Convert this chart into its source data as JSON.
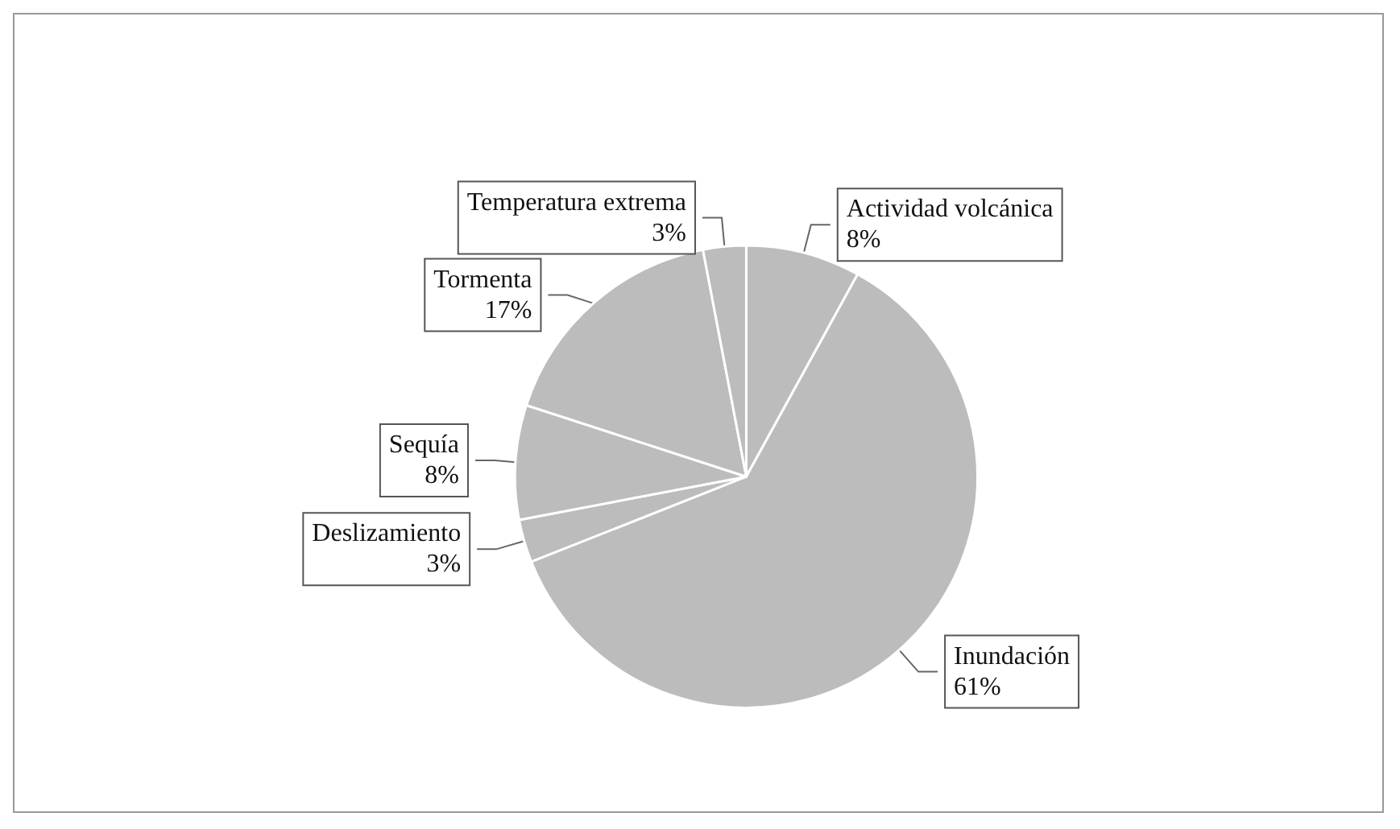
{
  "chart_data": {
    "type": "pie",
    "categories": [
      "Actividad volcánica",
      "Inundación",
      "Deslizamiento",
      "Sequía",
      "Tormenta",
      "Temperatura extrema"
    ],
    "values": [
      8,
      61,
      3,
      8,
      17,
      3
    ],
    "value_labels": [
      "8%",
      "61%",
      "3%",
      "8%",
      "17%",
      "3%"
    ],
    "colors": [
      "#bcbcbc",
      "#bcbcbc",
      "#bcbcbc",
      "#bcbcbc",
      "#bcbcbc",
      "#bcbcbc"
    ],
    "legend": false
  }
}
